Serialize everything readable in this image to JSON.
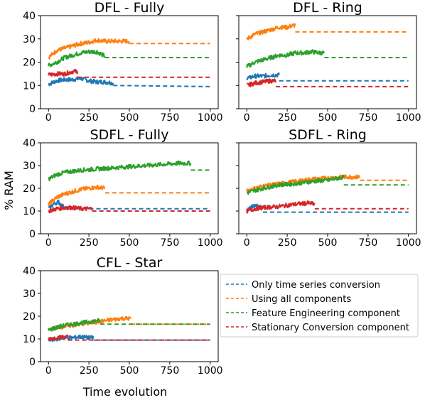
{
  "shared": {
    "ylabel": "% RAM",
    "xlabel": "Time evolution",
    "xticks": [
      "0",
      "250",
      "500",
      "750",
      "1000"
    ],
    "yticks": [
      "0",
      "10",
      "20",
      "30",
      "40"
    ],
    "colors": {
      "Only time series conversion": "#1f77b4",
      "Using all components": "#ff7f0e",
      "Feature Engineering component": "#2ca02c",
      "Stationary Conversion component": "#d62728"
    },
    "legend": {
      "placement": "right of bottom-left panel",
      "entries": [
        "Only time series conversion",
        "Using all components",
        "Feature Engineering component",
        "Stationary Conversion component"
      ]
    }
  },
  "chart_data": [
    {
      "type": "line",
      "title": "DFL - Fully",
      "xlim": [
        0,
        1000
      ],
      "ylim": [
        0,
        40
      ],
      "series": [
        {
          "name": "Only time series conversion",
          "active": [
            [
              0,
              10.5
            ],
            [
              50,
              12
            ],
            [
              100,
              12.5
            ],
            [
              150,
              12.5
            ],
            [
              200,
              13
            ],
            [
              250,
              12
            ],
            [
              300,
              11.5
            ],
            [
              350,
              11.5
            ],
            [
              400,
              11
            ]
          ],
          "end_x": 400,
          "plateau": 10,
          "plateau_end": 9.5
        },
        {
          "name": "Using all components",
          "active": [
            [
              0,
              22
            ],
            [
              50,
              25
            ],
            [
              100,
              26
            ],
            [
              150,
              27
            ],
            [
              200,
              28
            ],
            [
              250,
              28.5
            ],
            [
              300,
              29.5
            ],
            [
              350,
              29
            ],
            [
              400,
              29
            ],
            [
              450,
              29
            ],
            [
              500,
              29
            ]
          ],
          "end_x": 500,
          "plateau": 28,
          "plateau_end": 28
        },
        {
          "name": "Feature Engineering component",
          "active": [
            [
              0,
              18.5
            ],
            [
              50,
              20
            ],
            [
              100,
              22
            ],
            [
              150,
              23
            ],
            [
              200,
              24
            ],
            [
              250,
              24.5
            ],
            [
              300,
              24.5
            ],
            [
              350,
              22.5
            ]
          ],
          "end_x": 350,
          "plateau": 22,
          "plateau_end": 22
        },
        {
          "name": "Stationary Conversion component",
          "active": [
            [
              0,
              14.5
            ],
            [
              50,
              15
            ],
            [
              100,
              15
            ],
            [
              150,
              16
            ],
            [
              180,
              16
            ]
          ],
          "end_x": 180,
          "plateau": 13.5,
          "plateau_end": 13.5
        }
      ]
    },
    {
      "type": "line",
      "title": "DFL - Ring",
      "xlim": [
        0,
        1000
      ],
      "ylim": [
        0,
        40
      ],
      "series": [
        {
          "name": "Only time series conversion",
          "active": [
            [
              0,
              13
            ],
            [
              50,
              14
            ],
            [
              100,
              14
            ],
            [
              150,
              14.5
            ],
            [
              200,
              14.5
            ]
          ],
          "end_x": 200,
          "plateau": 12,
          "plateau_end": 12
        },
        {
          "name": "Using all components",
          "active": [
            [
              0,
              30
            ],
            [
              50,
              32
            ],
            [
              100,
              33
            ],
            [
              150,
              34
            ],
            [
              200,
              35
            ],
            [
              250,
              35
            ],
            [
              300,
              36
            ]
          ],
          "end_x": 300,
          "plateau": 33,
          "plateau_end": 33
        },
        {
          "name": "Feature Engineering component",
          "active": [
            [
              0,
              18
            ],
            [
              50,
              20
            ],
            [
              100,
              21
            ],
            [
              150,
              22
            ],
            [
              200,
              23
            ],
            [
              250,
              23
            ],
            [
              300,
              24
            ],
            [
              350,
              24
            ],
            [
              400,
              24.5
            ],
            [
              450,
              24
            ],
            [
              480,
              24
            ]
          ],
          "end_x": 480,
          "plateau": 22,
          "plateau_end": 22
        },
        {
          "name": "Stationary Conversion component",
          "active": [
            [
              0,
              10
            ],
            [
              50,
              11
            ],
            [
              100,
              11.5
            ],
            [
              150,
              12
            ],
            [
              180,
              12
            ]
          ],
          "end_x": 180,
          "plateau": 9.5,
          "plateau_end": 9.5
        }
      ]
    },
    {
      "type": "line",
      "title": "SDFL - Fully",
      "xlim": [
        0,
        1000
      ],
      "ylim": [
        0,
        40
      ],
      "series": [
        {
          "name": "Only time series conversion",
          "active": [
            [
              0,
              11
            ],
            [
              30,
              13
            ],
            [
              60,
              14
            ],
            [
              90,
              12
            ],
            [
              120,
              11
            ]
          ],
          "end_x": 120,
          "plateau": 11,
          "plateau_end": 11
        },
        {
          "name": "Using all components",
          "active": [
            [
              0,
              13
            ],
            [
              50,
              16
            ],
            [
              100,
              17.5
            ],
            [
              150,
              18.5
            ],
            [
              200,
              19.5
            ],
            [
              250,
              20
            ],
            [
              300,
              20.5
            ],
            [
              350,
              20
            ]
          ],
          "end_x": 350,
          "plateau": 18,
          "plateau_end": 18
        },
        {
          "name": "Feature Engineering component",
          "active": [
            [
              0,
              24
            ],
            [
              50,
              26
            ],
            [
              100,
              27
            ],
            [
              200,
              28
            ],
            [
              300,
              28.5
            ],
            [
              400,
              29
            ],
            [
              500,
              29.5
            ],
            [
              600,
              30
            ],
            [
              700,
              30.5
            ],
            [
              800,
              31
            ],
            [
              880,
              31
            ]
          ],
          "end_x": 880,
          "plateau": 28,
          "plateau_end": 28
        },
        {
          "name": "Stationary Conversion component",
          "active": [
            [
              0,
              10
            ],
            [
              50,
              11
            ],
            [
              100,
              11.5
            ],
            [
              150,
              11.5
            ],
            [
              200,
              11
            ],
            [
              250,
              11
            ],
            [
              270,
              11
            ]
          ],
          "end_x": 270,
          "plateau": 10,
          "plateau_end": 10
        }
      ]
    },
    {
      "type": "line",
      "title": "SDFL - Ring",
      "xlim": [
        0,
        1000
      ],
      "ylim": [
        0,
        40
      ],
      "series": [
        {
          "name": "Only time series conversion",
          "active": [
            [
              0,
              10
            ],
            [
              30,
              12
            ],
            [
              60,
              12.5
            ],
            [
              100,
              11
            ]
          ],
          "end_x": 100,
          "plateau": 9.5,
          "plateau_end": 9.5
        },
        {
          "name": "Using all components",
          "active": [
            [
              0,
              19
            ],
            [
              100,
              21
            ],
            [
              200,
              22
            ],
            [
              300,
              23
            ],
            [
              400,
              24
            ],
            [
              500,
              24.5
            ],
            [
              600,
              25
            ],
            [
              700,
              25
            ]
          ],
          "end_x": 700,
          "plateau": 23.5,
          "plateau_end": 23.5
        },
        {
          "name": "Feature Engineering component",
          "active": [
            [
              0,
              18
            ],
            [
              100,
              20
            ],
            [
              200,
              21.5
            ],
            [
              300,
              22
            ],
            [
              400,
              23
            ],
            [
              500,
              23.5
            ],
            [
              600,
              25
            ]
          ],
          "end_x": 600,
          "plateau": 21.5,
          "plateau_end": 21.5
        },
        {
          "name": "Stationary Conversion component",
          "active": [
            [
              0,
              10
            ],
            [
              50,
              11
            ],
            [
              100,
              11.5
            ],
            [
              200,
              12
            ],
            [
              300,
              13
            ],
            [
              380,
              13.5
            ],
            [
              420,
              13
            ]
          ],
          "end_x": 420,
          "plateau": 11,
          "plateau_end": 11
        }
      ]
    },
    {
      "type": "line",
      "title": "CFL - Star",
      "xlim": [
        0,
        1000
      ],
      "ylim": [
        0,
        40
      ],
      "series": [
        {
          "name": "Only time series conversion",
          "active": [
            [
              0,
              9.5
            ],
            [
              50,
              10
            ],
            [
              100,
              10.5
            ],
            [
              150,
              10.5
            ],
            [
              200,
              11
            ],
            [
              250,
              10.5
            ],
            [
              280,
              10.5
            ]
          ],
          "end_x": 280,
          "plateau": 9.5,
          "plateau_end": 9.5
        },
        {
          "name": "Using all components",
          "active": [
            [
              0,
              14
            ],
            [
              50,
              15
            ],
            [
              100,
              15.5
            ],
            [
              150,
              16
            ],
            [
              200,
              16.5
            ],
            [
              250,
              17
            ],
            [
              300,
              17.5
            ],
            [
              350,
              18
            ],
            [
              400,
              18.5
            ],
            [
              450,
              19
            ],
            [
              510,
              19
            ]
          ],
          "end_x": 510,
          "plateau": 16.5,
          "plateau_end": 16.5
        },
        {
          "name": "Feature Engineering component",
          "active": [
            [
              0,
              14
            ],
            [
              50,
              15
            ],
            [
              100,
              16
            ],
            [
              150,
              16.5
            ],
            [
              200,
              17
            ],
            [
              250,
              17.5
            ],
            [
              300,
              18
            ],
            [
              320,
              18
            ]
          ],
          "end_x": 320,
          "plateau": 16.5,
          "plateau_end": 16.5
        },
        {
          "name": "Stationary Conversion component",
          "active": [
            [
              0,
              10
            ],
            [
              50,
              10.5
            ],
            [
              100,
              11
            ],
            [
              120,
              11
            ]
          ],
          "end_x": 120,
          "plateau": 9.5,
          "plateau_end": 9.5
        }
      ]
    }
  ]
}
